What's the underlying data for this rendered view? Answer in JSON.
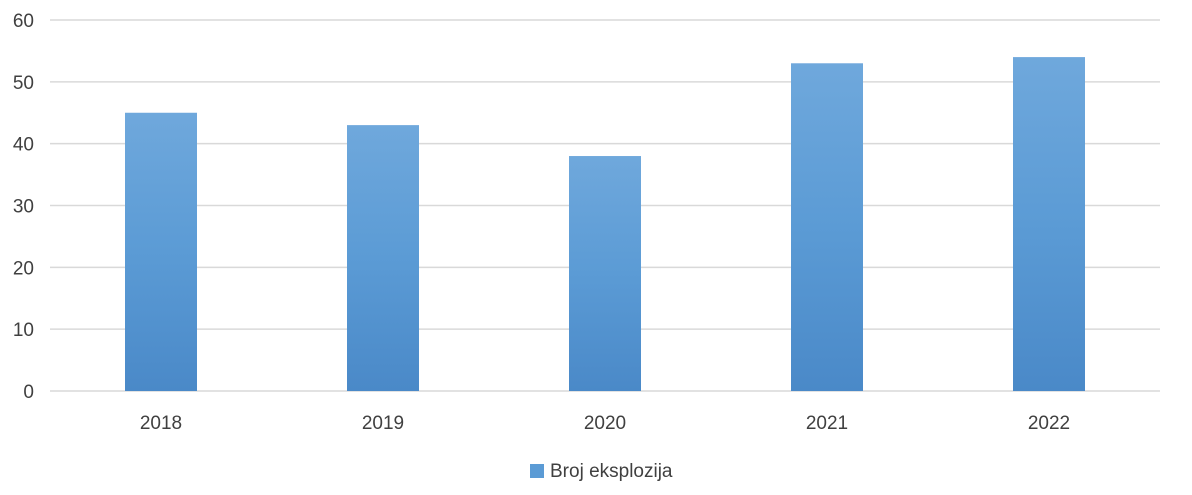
{
  "chart_data": {
    "type": "bar",
    "categories": [
      "2018",
      "2019",
      "2020",
      "2021",
      "2022"
    ],
    "series": [
      {
        "name": "Broj eksplozija",
        "values": [
          45,
          43,
          38,
          53,
          54
        ]
      }
    ],
    "title": "",
    "xlabel": "",
    "ylabel": "",
    "ylim": [
      0,
      60
    ],
    "yticks": [
      0,
      10,
      20,
      30,
      40,
      50,
      60
    ],
    "grid": true,
    "legend_position": "bottom",
    "colors": {
      "bar_top": "#6FA8DC",
      "bar_mid": "#5B9BD5",
      "bar_bottom": "#4A89C8",
      "grid": "#D9D9D9",
      "axis": "#D9D9D9",
      "text": "#404040"
    }
  }
}
